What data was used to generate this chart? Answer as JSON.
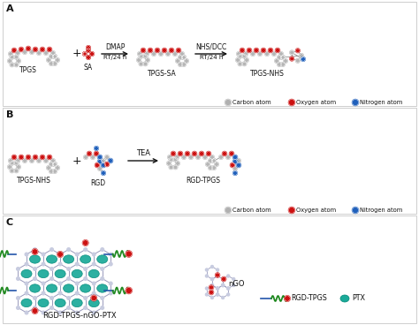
{
  "panel_A_label": "A",
  "panel_B_label": "B",
  "panel_C_label": "C",
  "panel_A_labels": [
    "TPGS",
    "SA",
    "TPGS-SA",
    "TPGS-NHS"
  ],
  "panel_A_arrow1_text_top": "DMAP",
  "panel_A_arrow1_text_bot": "RT/24 h",
  "panel_A_arrow2_text_top": "NHS/DCC",
  "panel_A_arrow2_text_bot": "RT/24 h",
  "panel_B_labels": [
    "TPGS-NHS",
    "RGD",
    "RGD-TPGS"
  ],
  "panel_B_arrow_text": "TEA",
  "panel_C_label_main": "RGD-TPGS-nGO-PTX",
  "legend_items": [
    "Carbon atom",
    "Oxygen atom",
    "Nitrogen atom"
  ],
  "legend_colors": [
    "#b0b0b0",
    "#cc1111",
    "#2060bb"
  ],
  "carbon_color": "#b5b5b5",
  "oxygen_color": "#cc1111",
  "nitrogen_color": "#2060bb",
  "teal_color": "#1aaa99",
  "teal_dark": "#008877",
  "green_color": "#228B22",
  "blue_line_color": "#2255aa",
  "ngo_label": "nGO",
  "rgd_tpgs_label": "RGD-TPGS",
  "ptx_label": "PTX",
  "bg_color": "#ffffff",
  "border_color": "#bbbbbb",
  "text_color": "#111111",
  "arrow_color": "#111111",
  "bond_color": "#888888",
  "hex_line_color": "#9999bb",
  "hex_node_color": "#c8cce0"
}
